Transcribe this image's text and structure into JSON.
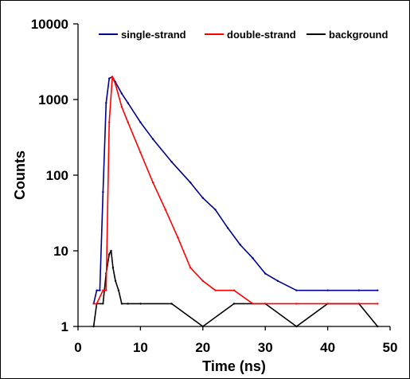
{
  "chart_data": {
    "type": "line",
    "title": "",
    "xlabel": "Time (ns)",
    "ylabel": "Counts",
    "xlim": [
      0,
      50
    ],
    "ylim": [
      1,
      10000
    ],
    "yscale": "log",
    "x_ticks": [
      0,
      10,
      20,
      30,
      40,
      50
    ],
    "x_tick_labels": [
      "0",
      "10",
      "20",
      "30",
      "40",
      "50"
    ],
    "y_ticks": [
      1,
      10,
      100,
      1000,
      10000
    ],
    "y_tick_labels": [
      "1",
      "10",
      "100",
      "1000",
      "10000"
    ],
    "grid": false,
    "legend_position": "top",
    "series": [
      {
        "name": "single-strand",
        "color": "#00008b",
        "x": [
          2.5,
          3.0,
          3.5,
          4.0,
          4.5,
          5.0,
          5.5,
          6.0,
          7.0,
          8.0,
          10.0,
          12.0,
          15.0,
          18.0,
          20.0,
          22.0,
          24.0,
          26.0,
          28.0,
          30.0,
          32.0,
          35.0,
          40.0,
          45.0,
          48.0
        ],
        "y": [
          2,
          3,
          3,
          60,
          900,
          1900,
          2000,
          1700,
          1200,
          900,
          500,
          300,
          150,
          80,
          50,
          35,
          20,
          12,
          8,
          5,
          4,
          3,
          3,
          3,
          3
        ]
      },
      {
        "name": "double-strand",
        "color": "#ff0000",
        "x": [
          2.5,
          3.0,
          4.0,
          4.5,
          5.0,
          5.5,
          6.0,
          7.0,
          8.0,
          10.0,
          12.0,
          14.0,
          16.0,
          18.0,
          20.0,
          22.0,
          25.0,
          28.0,
          30.0,
          35.0,
          40.0,
          45.0,
          48.0
        ],
        "y": [
          2,
          2,
          3,
          3,
          500,
          2000,
          1600,
          800,
          500,
          200,
          80,
          35,
          15,
          6,
          4,
          3,
          3,
          2,
          2,
          2,
          2,
          2,
          2
        ]
      },
      {
        "name": "background",
        "color": "#000000",
        "x": [
          2.5,
          3.0,
          4.0,
          4.5,
          5.0,
          5.3,
          5.6,
          6.0,
          6.5,
          7.0,
          8.0,
          10.0,
          15.0,
          20.0,
          25.0,
          30.0,
          35.0,
          40.0,
          45.0,
          48.0
        ],
        "y": [
          1,
          2,
          2,
          5,
          9,
          10,
          6,
          4,
          3,
          2,
          2,
          2,
          2,
          1,
          2,
          2,
          1,
          2,
          2,
          1
        ]
      }
    ]
  }
}
